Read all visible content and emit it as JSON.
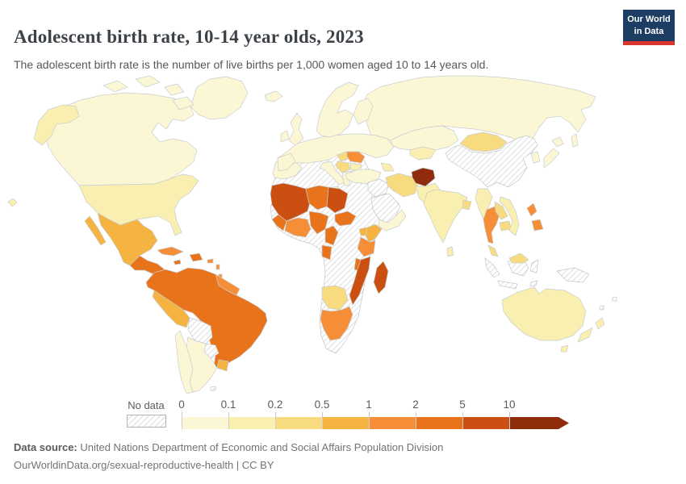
{
  "header": {
    "title": "Adolescent birth rate, 10-14 year olds, 2023",
    "subtitle": "The adolescent birth rate is the number of live births per 1,000 women aged 10 to 14 years old.",
    "logo": {
      "line1": "Our World",
      "line2": "in Data",
      "bg_color": "#1d3d63",
      "accent_color": "#d8352f",
      "text_color": "#ffffff"
    }
  },
  "legend": {
    "no_data_label": "No data",
    "tick_labels": [
      "0",
      "0.1",
      "0.2",
      "0.5",
      "1",
      "2",
      "5",
      "10"
    ],
    "hatch_line_color": "#cfcfcf",
    "swatch_border_color": "#b3b3b3"
  },
  "footer": {
    "source_label": "Data source:",
    "source_text": " United Nations Department of Economic and Social Affairs Population Division",
    "link_text": "OurWorldinData.org/sexual-reproductive-health | CC BY"
  },
  "chart_data": {
    "type": "choropleth_map",
    "title": "Adolescent birth rate, 10-14 year olds",
    "year": "2023",
    "unit": "live births per 1,000 women aged 10 to 14",
    "legend_position": "bottom",
    "no_data_label": "No data",
    "bins": [
      {
        "label": "0-0.1",
        "min": 0,
        "max": 0.1,
        "color": "#fbf7d5"
      },
      {
        "label": "0.1-0.2",
        "min": 0.1,
        "max": 0.2,
        "color": "#f9efb0"
      },
      {
        "label": "0.2-0.5",
        "min": 0.2,
        "max": 0.5,
        "color": "#f8db7f"
      },
      {
        "label": "0.5-1",
        "min": 0.5,
        "max": 1,
        "color": "#f5b341"
      },
      {
        "label": "1-2",
        "min": 1,
        "max": 2,
        "color": "#f68e38"
      },
      {
        "label": "2-5",
        "min": 2,
        "max": 5,
        "color": "#e8731b"
      },
      {
        "label": "5-10",
        "min": 5,
        "max": 10,
        "color": "#cb4f11"
      },
      {
        "label": "10+",
        "min": 10,
        "max": null,
        "color": "#8e2c0b"
      }
    ],
    "regions": {
      "greenland": "0-0.1",
      "canada": "0-0.1",
      "canada-arctic-islands": "0-0.1",
      "alaska": "0.1-0.2",
      "usa": "0.1-0.2",
      "hawaii": "0.1-0.2",
      "mexico": "0.5-1",
      "baja-california": "0.5-1",
      "central-america": "2-5",
      "cuba": "1-2",
      "jamaica": "2-5",
      "hispaniola": "2-5",
      "puerto-rico": "1-2",
      "lesser-antilles": "1-2",
      "south-america-north": "2-5",
      "guyanas": "1-2",
      "peru": "0.5-1",
      "bolivia": "no-data",
      "paraguay": "no-data",
      "uruguay": "0.5-1",
      "argentina": "0-0.1",
      "chile": "0-0.1",
      "falkland-islands": "no-data",
      "iceland": "0-0.1",
      "uk": "0-0.1",
      "ireland": "0-0.1",
      "scandinavia": "0-0.1",
      "finland": "0-0.1",
      "europe-main": "0-0.1",
      "spain-portugal": "0-0.1",
      "italy": "0-0.1",
      "sicily": "0-0.1",
      "greece": "0-0.1",
      "hungary": "0.2-0.5",
      "romania": "1-2",
      "serbia-balkans": "0.2-0.5",
      "bulgaria": "0.1-0.2",
      "russia": "0-0.1",
      "sakhalin": "0-0.1",
      "kazakhstan": "0-0.1",
      "central-asia": "0.1-0.2",
      "caucasus": "0.1-0.2",
      "turkey": "0-0.1",
      "syria-iraq": "no-data",
      "saudi-arabia": "no-data",
      "yemen-oman": "0-0.1",
      "iran": "0.2-0.5",
      "afghanistan": "10+",
      "pakistan": "0.1-0.2",
      "india": "0.1-0.2",
      "bangladesh": "0.2-0.5",
      "sri-lanka": "0.1-0.2",
      "china": "no-data",
      "mongolia": "0.2-0.5",
      "korea": "0-0.1",
      "japan-hokkaido": "0-0.1",
      "japan-honshu": "0-0.1",
      "myanmar": "0.1-0.2",
      "thailand": "1-2",
      "laos": "0.2-0.5",
      "cambodia": "0.2-0.5",
      "vietnam": "0.1-0.2",
      "malaysia-peninsula": "0.2-0.5",
      "malaysia-borneo": "0.2-0.5",
      "philippines-luzon": "1-2",
      "philippines-mindanao": "1-2",
      "indonesia-sumatra": "no-data",
      "indonesia-java": "no-data",
      "indonesia-borneo": "no-data",
      "sulawesi": "no-data",
      "timor": "no-data",
      "new-guinea": "no-data",
      "pacific-islands": "no-data",
      "australia": "0.1-0.2",
      "tasmania": "0.1-0.2",
      "new-zealand-north": "0.1-0.2",
      "new-zealand-south": "0.1-0.2",
      "africa-no-data-base": "no-data",
      "morocco": "0-0.1",
      "sahel-west": "5-10",
      "guinea-coast": "2-5",
      "ivory-coast-ghana": "1-2",
      "niger": "2-5",
      "chad": "5-10",
      "nigeria": "2-5",
      "cameroon": "2-5",
      "central-african-republic": "2-5",
      "gabon-congo": "2-5",
      "uganda": "0.5-1",
      "kenya": "0.5-1",
      "tanzania": "1-2",
      "malawi": "2-5",
      "mozambique": "5-10",
      "madagascar": "5-10",
      "namibia-botswana": "0.2-0.5",
      "south-africa": "1-2"
    }
  }
}
